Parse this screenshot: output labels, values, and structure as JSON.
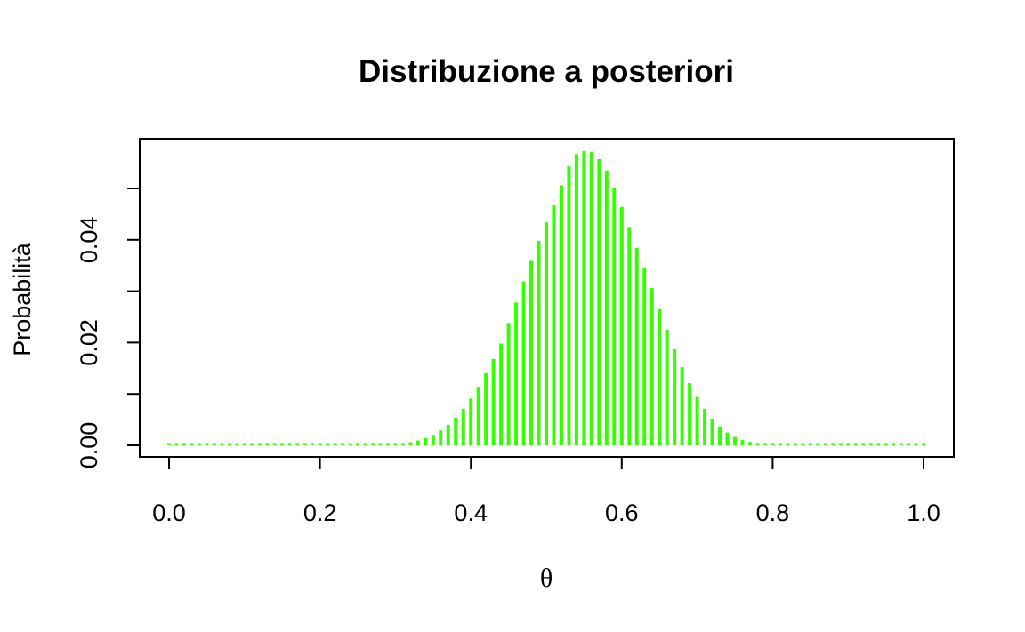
{
  "chart_data": {
    "type": "bar",
    "title": "Distribuzione a posteriori",
    "xlabel": "θ",
    "ylabel": "Probabilità",
    "xlim": [
      0,
      1
    ],
    "ylim": [
      0,
      0.058
    ],
    "x_ticks": [
      0.0,
      0.2,
      0.4,
      0.6,
      0.8,
      1.0
    ],
    "x_tick_labels": [
      "0.0",
      "0.2",
      "0.4",
      "0.6",
      "0.8",
      "1.0"
    ],
    "y_ticks": [
      0.0,
      0.01,
      0.02,
      0.03,
      0.04,
      0.05
    ],
    "y_tick_labels": [
      "0.00",
      "",
      "0.02",
      "",
      "0.04",
      ""
    ],
    "color": "#33ff00",
    "grid": false,
    "legend": "none",
    "x": [
      0.0,
      0.01,
      0.02,
      0.03,
      0.04,
      0.05,
      0.06,
      0.07,
      0.08,
      0.09,
      0.1,
      0.11,
      0.12,
      0.13,
      0.14,
      0.15,
      0.16,
      0.17,
      0.18,
      0.19,
      0.2,
      0.21,
      0.22,
      0.23,
      0.24,
      0.25,
      0.26,
      0.27,
      0.28,
      0.29,
      0.3,
      0.31,
      0.32,
      0.33,
      0.34,
      0.35,
      0.36,
      0.37,
      0.38,
      0.39,
      0.4,
      0.41,
      0.42,
      0.43,
      0.44,
      0.45,
      0.46,
      0.47,
      0.48,
      0.49,
      0.5,
      0.51,
      0.52,
      0.53,
      0.54,
      0.55,
      0.56,
      0.57,
      0.58,
      0.59,
      0.6,
      0.61,
      0.62,
      0.63,
      0.64,
      0.65,
      0.66,
      0.67,
      0.68,
      0.69,
      0.7,
      0.71,
      0.72,
      0.73,
      0.74,
      0.75,
      0.76,
      0.77,
      0.78,
      0.79,
      0.8,
      0.81,
      0.82,
      0.83,
      0.84,
      0.85,
      0.86,
      0.87,
      0.88,
      0.89,
      0.9,
      0.91,
      0.92,
      0.93,
      0.94,
      0.95,
      0.96,
      0.97,
      0.98,
      0.99,
      1.0
    ],
    "values": [
      0,
      0,
      0,
      0,
      0,
      0,
      0,
      0,
      0,
      0,
      0,
      0,
      0,
      0,
      0,
      0,
      0,
      0,
      0,
      0,
      0,
      0,
      0,
      0,
      0,
      1e-05,
      2e-05,
      4e-05,
      7e-05,
      0.00013,
      0.00022,
      0.00037,
      0.0006,
      0.00093,
      0.0014,
      0.00204,
      0.0029,
      0.004,
      0.0054,
      0.0071,
      0.0091,
      0.0114,
      0.014,
      0.0168,
      0.0198,
      0.0238,
      0.0278,
      0.0319,
      0.0359,
      0.0398,
      0.0434,
      0.0467,
      0.0506,
      0.0543,
      0.0567,
      0.0573,
      0.0571,
      0.0557,
      0.0535,
      0.0502,
      0.0464,
      0.0425,
      0.0384,
      0.0345,
      0.0306,
      0.0265,
      0.0225,
      0.0187,
      0.0152,
      0.0121,
      0.0094,
      0.0071,
      0.0052,
      0.0037,
      0.0025,
      0.00165,
      0.00104,
      0.00063,
      0.00036,
      0.0002,
      0.0001,
      5e-05,
      2e-05,
      1e-05,
      0,
      0,
      0,
      0,
      0,
      0,
      0,
      0,
      0,
      0,
      0,
      0,
      0,
      0,
      0,
      0,
      0
    ]
  }
}
